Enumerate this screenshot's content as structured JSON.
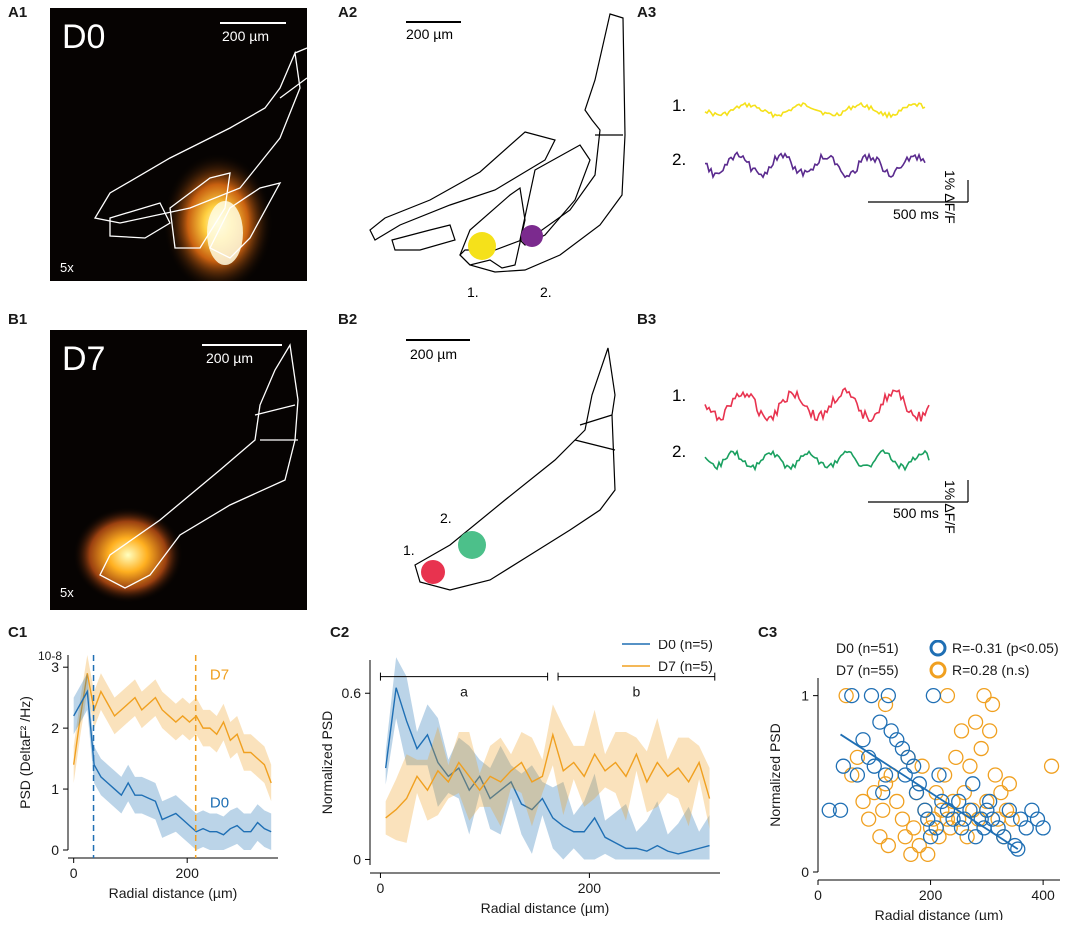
{
  "panels": {
    "A1": {
      "label": "A1",
      "day": "D0",
      "mag": "5x",
      "scale": "200 µm"
    },
    "A2": {
      "label": "A2",
      "scale": "200 µm",
      "roi1": "1.",
      "roi2": "2."
    },
    "A3": {
      "label": "A3",
      "trace1": "1.",
      "trace2": "2.",
      "time_scale": "500 ms",
      "amp_scale": "1% ΔF/F"
    },
    "B1": {
      "label": "B1",
      "day": "D7",
      "mag": "5x",
      "scale": "200 µm"
    },
    "B2": {
      "label": "B2",
      "scale": "200 µm",
      "roi1": "1.",
      "roi2": "2."
    },
    "B3": {
      "label": "B3",
      "trace1": "1.",
      "trace2": "2.",
      "time_scale": "500 ms",
      "amp_scale": "1% ΔF/F"
    },
    "C1": {
      "label": "C1"
    },
    "C2": {
      "label": "C2"
    },
    "C3": {
      "label": "C3"
    }
  },
  "colors": {
    "d0": "#1f6fb4",
    "d7": "#f0a020",
    "roi_yellow": "#f5e11a",
    "roi_purple": "#7b2a8e",
    "roi_red": "#e8334f",
    "roi_green": "#4cc08a"
  },
  "chart_data": [
    {
      "id": "C1",
      "type": "line",
      "title": "",
      "xlabel": "Radial distance (µm)",
      "ylabel": "PSD (DeltaF² /Hz)",
      "y_multiplier": "10-8",
      "xlim": [
        -10,
        360
      ],
      "ylim": [
        0,
        3.2
      ],
      "xticks": [
        0,
        200
      ],
      "yticks": [
        0,
        1,
        2,
        3
      ],
      "series": [
        {
          "name": "D7",
          "color": "#f0a020",
          "x": [
            0,
            12,
            24,
            36,
            48,
            60,
            72,
            84,
            96,
            108,
            120,
            132,
            144,
            156,
            168,
            180,
            192,
            204,
            216,
            228,
            240,
            252,
            264,
            276,
            288,
            300,
            312,
            324,
            336,
            348
          ],
          "values": [
            1.4,
            2.2,
            2.9,
            2.3,
            2.6,
            2.4,
            2.2,
            2.3,
            2.4,
            2.5,
            2.3,
            2.4,
            2.5,
            2.3,
            2.2,
            2.1,
            2.2,
            2.1,
            2.2,
            2.0,
            2.0,
            1.9,
            2.1,
            1.8,
            1.9,
            1.6,
            1.6,
            1.5,
            1.4,
            1.1
          ]
        },
        {
          "name": "D0",
          "color": "#1f6fb4",
          "x": [
            0,
            12,
            24,
            36,
            48,
            60,
            72,
            84,
            96,
            108,
            120,
            132,
            144,
            156,
            168,
            180,
            192,
            204,
            216,
            228,
            240,
            252,
            264,
            276,
            288,
            300,
            312,
            324,
            336,
            348
          ],
          "values": [
            2.2,
            2.4,
            2.6,
            1.4,
            1.2,
            1.1,
            1.0,
            0.9,
            1.1,
            0.9,
            0.9,
            0.85,
            0.8,
            0.5,
            0.55,
            0.6,
            0.5,
            0.4,
            0.3,
            0.35,
            0.3,
            0.3,
            0.25,
            0.35,
            0.4,
            0.3,
            0.3,
            0.45,
            0.35,
            0.3
          ]
        }
      ],
      "vlines": [
        {
          "x": 35,
          "color": "#1f6fb4"
        },
        {
          "x": 215,
          "color": "#f0a020"
        }
      ],
      "annotations": [
        "D7",
        "D0"
      ]
    },
    {
      "id": "C2",
      "type": "line",
      "title": "",
      "xlabel": "Radial distance (µm)",
      "ylabel": "Normalized PSD",
      "xlim": [
        -10,
        325
      ],
      "ylim": [
        -0.02,
        0.72
      ],
      "xticks": [
        0,
        200
      ],
      "yticks": [
        0,
        0.6
      ],
      "legend": [
        "D0 (n=5)",
        "D7 (n=5)"
      ],
      "brackets": [
        {
          "label": "a",
          "from": 0,
          "to": 160
        },
        {
          "label": "b",
          "from": 170,
          "to": 320
        }
      ],
      "series": [
        {
          "name": "D0 (n=5)",
          "color": "#1f6fb4",
          "x": [
            5,
            15,
            25,
            35,
            45,
            55,
            65,
            75,
            85,
            95,
            105,
            115,
            125,
            135,
            145,
            155,
            165,
            175,
            185,
            195,
            205,
            215,
            225,
            235,
            245,
            255,
            265,
            275,
            285,
            295,
            305,
            315
          ],
          "values": [
            0.33,
            0.62,
            0.5,
            0.4,
            0.45,
            0.35,
            0.3,
            0.33,
            0.25,
            0.3,
            0.22,
            0.25,
            0.28,
            0.2,
            0.18,
            0.22,
            0.15,
            0.12,
            0.1,
            0.1,
            0.15,
            0.08,
            0.06,
            0.04,
            0.04,
            0.03,
            0.05,
            0.03,
            0.02,
            0.03,
            0.04,
            0.05
          ]
        },
        {
          "name": "D7 (n=5)",
          "color": "#f0a020",
          "x": [
            5,
            15,
            25,
            35,
            45,
            55,
            65,
            75,
            85,
            95,
            105,
            115,
            125,
            135,
            145,
            155,
            165,
            175,
            185,
            195,
            205,
            215,
            225,
            235,
            245,
            255,
            265,
            275,
            285,
            295,
            305,
            315
          ],
          "values": [
            0.15,
            0.18,
            0.22,
            0.3,
            0.25,
            0.32,
            0.28,
            0.35,
            0.3,
            0.25,
            0.3,
            0.28,
            0.32,
            0.35,
            0.28,
            0.3,
            0.45,
            0.32,
            0.35,
            0.3,
            0.38,
            0.32,
            0.35,
            0.3,
            0.38,
            0.28,
            0.35,
            0.3,
            0.33,
            0.28,
            0.35,
            0.22
          ]
        }
      ]
    },
    {
      "id": "C3",
      "type": "scatter",
      "title": "",
      "xlabel": "Radial distance (µm)",
      "ylabel": "Normalized PSD",
      "xlim": [
        0,
        430
      ],
      "ylim": [
        0,
        1.1
      ],
      "xticks": [
        0,
        200,
        400
      ],
      "yticks": [
        0,
        1
      ],
      "legend": [
        {
          "group": "D0 (n=51)",
          "stat": "R=-0.31 (p<0.05)",
          "color": "#1f6fb4"
        },
        {
          "group": "D7 (n=55)",
          "stat": "R=0.28 (n.s)",
          "color": "#f0a020"
        }
      ],
      "series": [
        {
          "name": "D0 (n=51)",
          "color": "#1f6fb4",
          "points": [
            [
              20,
              0.35
            ],
            [
              40,
              0.35
            ],
            [
              45,
              0.6
            ],
            [
              60,
              1.0
            ],
            [
              70,
              0.55
            ],
            [
              80,
              0.75
            ],
            [
              90,
              0.65
            ],
            [
              95,
              1.0
            ],
            [
              100,
              0.6
            ],
            [
              110,
              0.85
            ],
            [
              115,
              0.45
            ],
            [
              120,
              0.55
            ],
            [
              125,
              1.0
            ],
            [
              130,
              0.8
            ],
            [
              140,
              0.75
            ],
            [
              150,
              0.7
            ],
            [
              155,
              0.55
            ],
            [
              160,
              0.65
            ],
            [
              170,
              0.6
            ],
            [
              175,
              0.45
            ],
            [
              180,
              0.5
            ],
            [
              190,
              0.35
            ],
            [
              195,
              0.3
            ],
            [
              200,
              0.2
            ],
            [
              205,
              1.0
            ],
            [
              210,
              0.25
            ],
            [
              215,
              0.55
            ],
            [
              220,
              0.4
            ],
            [
              230,
              0.35
            ],
            [
              240,
              0.3
            ],
            [
              250,
              0.4
            ],
            [
              255,
              0.25
            ],
            [
              260,
              0.3
            ],
            [
              270,
              0.35
            ],
            [
              275,
              0.5
            ],
            [
              280,
              0.2
            ],
            [
              290,
              0.3
            ],
            [
              295,
              0.25
            ],
            [
              300,
              0.35
            ],
            [
              305,
              0.4
            ],
            [
              310,
              0.3
            ],
            [
              320,
              0.25
            ],
            [
              330,
              0.2
            ],
            [
              340,
              0.35
            ],
            [
              350,
              0.15
            ],
            [
              360,
              0.3
            ],
            [
              370,
              0.25
            ],
            [
              380,
              0.35
            ],
            [
              390,
              0.3
            ],
            [
              400,
              0.25
            ],
            [
              355,
              0.13
            ]
          ],
          "fit": {
            "x": [
              40,
              355
            ],
            "y": [
              0.78,
              0.13
            ]
          }
        },
        {
          "name": "D7 (n=55)",
          "color": "#f0a020",
          "points": [
            [
              50,
              1.0
            ],
            [
              60,
              0.55
            ],
            [
              70,
              0.65
            ],
            [
              80,
              0.4
            ],
            [
              90,
              0.3
            ],
            [
              100,
              0.45
            ],
            [
              110,
              0.2
            ],
            [
              115,
              0.35
            ],
            [
              120,
              0.5
            ],
            [
              125,
              0.15
            ],
            [
              130,
              0.55
            ],
            [
              140,
              0.4
            ],
            [
              150,
              0.3
            ],
            [
              155,
              0.2
            ],
            [
              160,
              0.65
            ],
            [
              165,
              0.1
            ],
            [
              170,
              0.25
            ],
            [
              175,
              0.45
            ],
            [
              180,
              0.15
            ],
            [
              185,
              0.6
            ],
            [
              190,
              0.35
            ],
            [
              195,
              0.1
            ],
            [
              200,
              0.25
            ],
            [
              205,
              0.3
            ],
            [
              210,
              0.45
            ],
            [
              215,
              0.2
            ],
            [
              220,
              0.35
            ],
            [
              225,
              0.55
            ],
            [
              230,
              0.3
            ],
            [
              235,
              0.25
            ],
            [
              240,
              0.4
            ],
            [
              245,
              0.65
            ],
            [
              250,
              0.3
            ],
            [
              255,
              0.8
            ],
            [
              260,
              0.45
            ],
            [
              265,
              0.2
            ],
            [
              270,
              0.6
            ],
            [
              275,
              0.35
            ],
            [
              280,
              0.85
            ],
            [
              285,
              0.3
            ],
            [
              290,
              0.7
            ],
            [
              295,
              1.0
            ],
            [
              300,
              0.4
            ],
            [
              305,
              0.8
            ],
            [
              310,
              0.95
            ],
            [
              315,
              0.55
            ],
            [
              320,
              0.3
            ],
            [
              325,
              0.45
            ],
            [
              330,
              0.2
            ],
            [
              335,
              0.35
            ],
            [
              340,
              0.5
            ],
            [
              345,
              0.3
            ],
            [
              415,
              0.6
            ],
            [
              230,
              1.0
            ],
            [
              120,
              0.95
            ]
          ]
        }
      ]
    }
  ]
}
